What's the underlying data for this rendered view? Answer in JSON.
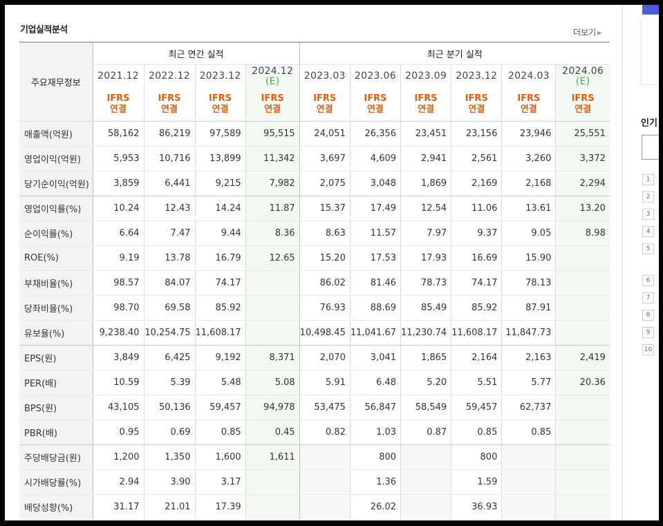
{
  "title": "기업실적분석",
  "more_label": "더보기",
  "group_annual": "최근 연간 실적",
  "group_quarter": "최근 분기 실적",
  "corner_label": "주요재무정보",
  "periods": [
    {
      "label": "2021.12",
      "est": ""
    },
    {
      "label": "2022.12",
      "est": ""
    },
    {
      "label": "2023.12",
      "est": ""
    },
    {
      "label": "2024.12",
      "est": "(E)"
    },
    {
      "label": "2023.03",
      "est": ""
    },
    {
      "label": "2023.06",
      "est": ""
    },
    {
      "label": "2023.09",
      "est": ""
    },
    {
      "label": "2023.12",
      "est": ""
    },
    {
      "label": "2024.03",
      "est": ""
    },
    {
      "label": "2024.06",
      "est": "(E)"
    }
  ],
  "ifrs_top": "IFRS",
  "ifrs_bottom": "연결",
  "rows": [
    {
      "label": "매출액(억원)",
      "values": [
        "58,162",
        "86,219",
        "97,589",
        "95,515",
        "24,051",
        "26,356",
        "23,451",
        "23,156",
        "23,946",
        "25,551"
      ]
    },
    {
      "label": "영업이익(억원)",
      "values": [
        "5,953",
        "10,716",
        "13,899",
        "11,342",
        "3,697",
        "4,609",
        "2,941",
        "2,561",
        "3,260",
        "3,372"
      ]
    },
    {
      "label": "당기순이익(억원)",
      "values": [
        "3,859",
        "6,441",
        "9,215",
        "7,982",
        "2,075",
        "3,048",
        "1,869",
        "2,169",
        "2,168",
        "2,294"
      ]
    },
    {
      "label": "영업이익률(%)",
      "values": [
        "10.24",
        "12.43",
        "14.24",
        "11.87",
        "15.37",
        "17.49",
        "12.54",
        "11.06",
        "13.61",
        "13.20"
      ]
    },
    {
      "label": "순이익률(%)",
      "values": [
        "6.64",
        "7.47",
        "9.44",
        "8.36",
        "8.63",
        "11.57",
        "7.97",
        "9.37",
        "9.05",
        "8.98"
      ]
    },
    {
      "label": "ROE(%)",
      "values": [
        "9.19",
        "13.78",
        "16.79",
        "12.65",
        "15.20",
        "17.53",
        "17.93",
        "16.69",
        "15.90",
        ""
      ]
    },
    {
      "label": "부채비율(%)",
      "values": [
        "98.57",
        "84.07",
        "74.17",
        "",
        "86.02",
        "81.46",
        "78.73",
        "74.17",
        "78.13",
        ""
      ]
    },
    {
      "label": "당좌비율(%)",
      "values": [
        "98.70",
        "69.58",
        "85.92",
        "",
        "76.93",
        "88.69",
        "85.49",
        "85.92",
        "87.91",
        ""
      ]
    },
    {
      "label": "유보율(%)",
      "values": [
        "9,238.40",
        "10,254.75",
        "11,608.17",
        "",
        "10,498.45",
        "11,041.67",
        "11,230.74",
        "11,608.17",
        "11,847.73",
        ""
      ]
    },
    {
      "label": "EPS(원)",
      "values": [
        "3,849",
        "6,425",
        "9,192",
        "8,371",
        "2,070",
        "3,041",
        "1,865",
        "2,164",
        "2,163",
        "2,419"
      ]
    },
    {
      "label": "PER(배)",
      "values": [
        "10.59",
        "5.39",
        "5.48",
        "5.08",
        "5.91",
        "6.48",
        "5.20",
        "5.51",
        "5.77",
        "20.36"
      ]
    },
    {
      "label": "BPS(원)",
      "values": [
        "43,105",
        "50,136",
        "59,457",
        "94,978",
        "53,475",
        "56,847",
        "58,549",
        "59,457",
        "62,737",
        ""
      ]
    },
    {
      "label": "PBR(배)",
      "values": [
        "0.95",
        "0.69",
        "0.85",
        "0.45",
        "0.82",
        "1.03",
        "0.87",
        "0.85",
        "0.85",
        ""
      ]
    },
    {
      "label": "주당배당금(원)",
      "values": [
        "1,200",
        "1,350",
        "1,600",
        "1,611",
        "",
        "800",
        "",
        "800",
        "",
        ""
      ]
    },
    {
      "label": "시가배당률(%)",
      "values": [
        "2.94",
        "3.90",
        "3.17",
        "",
        "",
        "1.36",
        "",
        "1.59",
        "",
        ""
      ]
    },
    {
      "label": "배당성향(%)",
      "values": [
        "31.17",
        "21.01",
        "17.39",
        "",
        "",
        "26.02",
        "",
        "36.93",
        "",
        ""
      ]
    }
  ],
  "sidebar": {
    "popular_label": "인기",
    "ranks": [
      "1",
      "2",
      "3",
      "4",
      "5",
      "6",
      "7",
      "8",
      "9",
      "10"
    ]
  }
}
